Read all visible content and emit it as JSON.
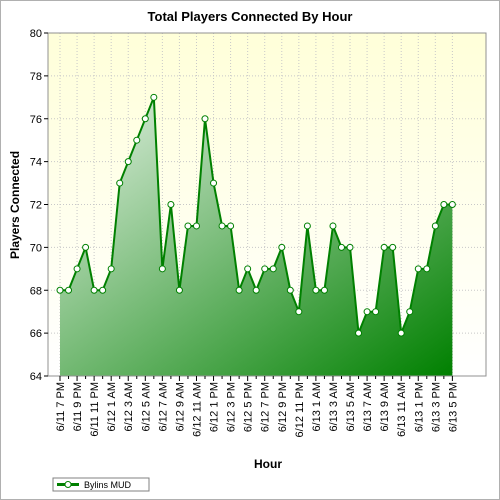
{
  "chart_data": {
    "type": "area",
    "title": "Total Players Connected By Hour",
    "xlabel": "Hour",
    "ylabel": "Players Connected",
    "ylim": [
      64,
      80
    ],
    "yticks": [
      64,
      66,
      68,
      70,
      72,
      74,
      76,
      78,
      80
    ],
    "grid": true,
    "legend_position": "bottom-left",
    "series": [
      {
        "name": "Bylins MUD",
        "color": "#008000",
        "values": [
          68,
          68,
          69,
          70,
          68,
          68,
          69,
          73,
          74,
          75,
          76,
          77,
          69,
          72,
          68,
          71,
          71,
          76,
          73,
          71,
          71,
          68,
          69,
          68,
          69,
          69,
          70,
          68,
          67,
          71,
          68,
          68,
          71,
          70,
          70,
          66,
          67,
          67,
          70,
          70,
          66,
          67,
          69,
          69,
          71,
          72,
          72
        ]
      }
    ],
    "x_tick_labels": [
      "6/11 7 PM",
      "6/11 9 PM",
      "6/11 11 PM",
      "6/12 1 AM",
      "6/12 3 AM",
      "6/12 5 AM",
      "6/12 7 AM",
      "6/12 9 AM",
      "6/12 11 AM",
      "6/12 1 PM",
      "6/12 3 PM",
      "6/12 5 PM",
      "6/12 7 PM",
      "6/12 9 PM",
      "6/12 11 PM",
      "6/13 1 AM",
      "6/13 3 AM",
      "6/13 5 AM",
      "6/13 7 AM",
      "6/13 9 AM",
      "6/13 11 AM",
      "6/13 1 PM",
      "6/13 3 PM",
      "6/13 5 PM"
    ]
  }
}
